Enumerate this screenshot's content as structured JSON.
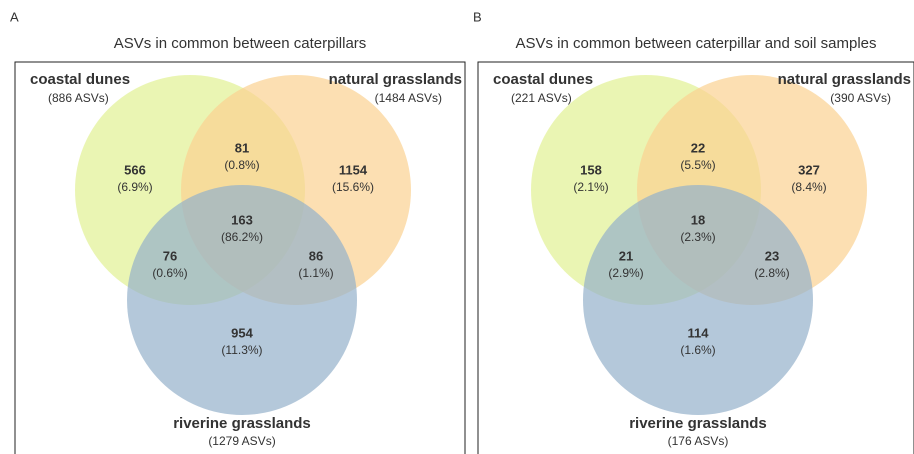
{
  "panels": [
    {
      "label": "A",
      "title": "ASVs in common between caterpillars",
      "sets": [
        {
          "name": "coastal dunes",
          "count": "(886 ASVs)"
        },
        {
          "name": "natural grasslands",
          "count": "(1484 ASVs)"
        },
        {
          "name": "riverine grasslands",
          "count": "(1279 ASVs)"
        }
      ],
      "regions": [
        {
          "value": 566,
          "percent": "(6.9%)"
        },
        {
          "value": 81,
          "percent": "(0.8%)"
        },
        {
          "value": 1154,
          "percent": "(15.6%)"
        },
        {
          "value": 163,
          "percent": "(86.2%)"
        },
        {
          "value": 76,
          "percent": "(0.6%)"
        },
        {
          "value": 86,
          "percent": "(1.1%)"
        },
        {
          "value": 954,
          "percent": "(11.3%)"
        }
      ]
    },
    {
      "label": "B",
      "title": "ASVs in common between caterpillar and soil samples",
      "sets": [
        {
          "name": "coastal dunes",
          "count": "(221 ASVs)"
        },
        {
          "name": "natural grasslands",
          "count": "(390 ASVs)"
        },
        {
          "name": "riverine grasslands",
          "count": "(176 ASVs)"
        }
      ],
      "regions": [
        {
          "value": 158,
          "percent": "(2.1%)"
        },
        {
          "value": 22,
          "percent": "(5.5%)"
        },
        {
          "value": 327,
          "percent": "(8.4%)"
        },
        {
          "value": 18,
          "percent": "(2.3%)"
        },
        {
          "value": 21,
          "percent": "(2.9%)"
        },
        {
          "value": 23,
          "percent": "(2.8%)"
        },
        {
          "value": 114,
          "percent": "(1.6%)"
        }
      ]
    }
  ]
}
